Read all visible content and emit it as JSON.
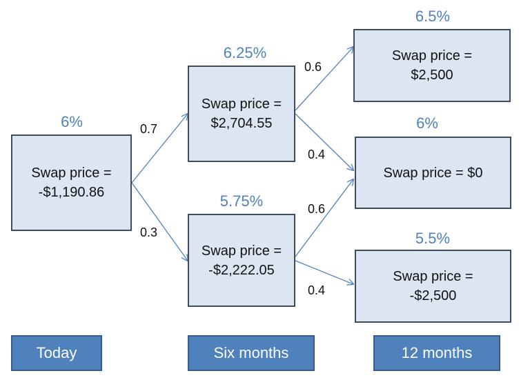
{
  "nodes": {
    "today": {
      "rate": "6%",
      "text": "Swap price =\n-$1,190.86"
    },
    "six_up": {
      "rate": "6.25%",
      "text": "Swap price =\n$2,704.55"
    },
    "six_down": {
      "rate": "5.75%",
      "text": "Swap price =\n-$2,222.05"
    },
    "twelve_up": {
      "rate": "6.5%",
      "text": "Swap price =\n$2,500"
    },
    "twelve_mid": {
      "rate": "6%",
      "text": "Swap price = $0"
    },
    "twelve_down": {
      "rate": "5.5%",
      "text": "Swap price =\n-$2,500"
    }
  },
  "probabilities": {
    "today_up": "0.7",
    "today_down": "0.3",
    "six_up_up": "0.6",
    "six_up_down": "0.4",
    "six_down_up": "0.6",
    "six_down_down": "0.4"
  },
  "period_labels": {
    "today": "Today",
    "six_months": "Six months",
    "twelve_months": "12 months"
  },
  "colors": {
    "node_fill": "#dce6f2",
    "node_border": "#3f4b5c",
    "rate_text": "#4f81bd",
    "label_fill": "#4f81bd",
    "arrow": "#4f81bd"
  }
}
